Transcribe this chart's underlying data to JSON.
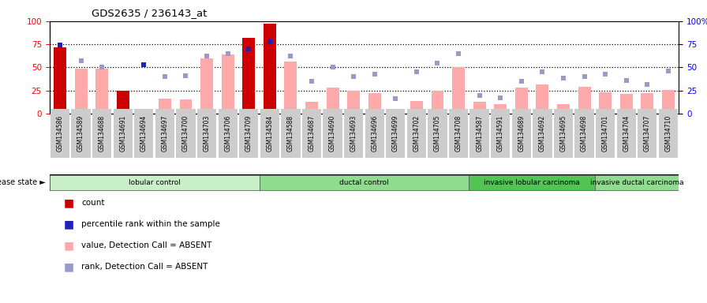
{
  "title": "GDS2635 / 236143_at",
  "samples": [
    "GSM134586",
    "GSM134589",
    "GSM134688",
    "GSM134691",
    "GSM134694",
    "GSM134697",
    "GSM134700",
    "GSM134703",
    "GSM134706",
    "GSM134709",
    "GSM134584",
    "GSM134588",
    "GSM134687",
    "GSM134690",
    "GSM134693",
    "GSM134696",
    "GSM134699",
    "GSM134702",
    "GSM134705",
    "GSM134708",
    "GSM134587",
    "GSM134591",
    "GSM134689",
    "GSM134692",
    "GSM134695",
    "GSM134698",
    "GSM134701",
    "GSM134704",
    "GSM134707",
    "GSM134710"
  ],
  "count_values": [
    72,
    0,
    0,
    25,
    0,
    0,
    0,
    0,
    0,
    82,
    97,
    0,
    0,
    0,
    0,
    0,
    0,
    0,
    0,
    0,
    0,
    0,
    0,
    0,
    0,
    0,
    0,
    0,
    0,
    0
  ],
  "percentile_rank": [
    74,
    0,
    0,
    0,
    53,
    0,
    0,
    0,
    0,
    70,
    78,
    0,
    0,
    0,
    0,
    0,
    0,
    0,
    0,
    0,
    0,
    0,
    0,
    0,
    0,
    0,
    0,
    0,
    0,
    0
  ],
  "absent_value": [
    0,
    49,
    49,
    8,
    0,
    16,
    15,
    60,
    64,
    0,
    0,
    56,
    13,
    28,
    25,
    22,
    5,
    14,
    25,
    50,
    13,
    10,
    28,
    32,
    10,
    29,
    23,
    21,
    22,
    26
  ],
  "absent_rank": [
    0,
    57,
    50,
    0,
    0,
    40,
    41,
    62,
    65,
    0,
    0,
    62,
    35,
    50,
    40,
    43,
    16,
    45,
    55,
    65,
    20,
    17,
    35,
    45,
    38,
    40,
    43,
    36,
    32,
    46
  ],
  "groups": [
    {
      "label": "lobular control",
      "start": 0,
      "end": 10,
      "color": "#c8efc8"
    },
    {
      "label": "ductal control",
      "start": 10,
      "end": 20,
      "color": "#8fdc8f"
    },
    {
      "label": "invasive lobular carcinoma",
      "start": 20,
      "end": 26,
      "color": "#52c452"
    },
    {
      "label": "invasive ductal carcinoma",
      "start": 26,
      "end": 30,
      "color": "#8fdc8f"
    }
  ],
  "bar_color_count": "#cc0000",
  "bar_color_absent_value": "#ffaaaa",
  "dot_color_percentile": "#2222bb",
  "dot_color_absent_rank": "#9999cc",
  "background_plot": "#ffffff",
  "background_fig": "#ffffff",
  "tick_label_bg": "#cccccc"
}
